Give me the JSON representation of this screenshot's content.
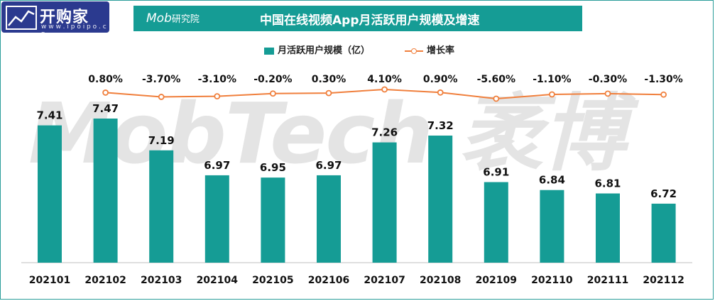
{
  "logo": {
    "text": "开购家",
    "sub": "w w w . i p o i p o . c n"
  },
  "brand": {
    "name": "Mob",
    "suffix": "研究院"
  },
  "watermark": {
    "text": "MobTech 袤博"
  },
  "colors": {
    "bar": "#159c95",
    "line": "#f07f3c",
    "title_bg": "#159c95",
    "logo_bg": "#2b3a8f"
  },
  "chart_data": {
    "type": "bar",
    "title": "中国在线视频App月活跃用户规模及增速",
    "categories": [
      "202101",
      "202102",
      "202103",
      "202104",
      "202105",
      "202106",
      "202107",
      "202108",
      "202109",
      "202110",
      "202111",
      "202112"
    ],
    "series": [
      {
        "name": "月活跃用户规模（亿）",
        "type": "bar",
        "values": [
          7.41,
          7.47,
          7.19,
          6.97,
          6.95,
          6.97,
          7.26,
          7.32,
          6.91,
          6.84,
          6.81,
          6.72
        ],
        "labels": [
          "7.41",
          "7.47",
          "7.19",
          "6.97",
          "6.95",
          "6.97",
          "7.26",
          "7.32",
          "6.91",
          "6.84",
          "6.81",
          "6.72"
        ]
      },
      {
        "name": "增长率",
        "type": "line",
        "values": [
          null,
          0.8,
          -3.7,
          -3.1,
          -0.2,
          0.3,
          4.1,
          0.9,
          -5.6,
          -1.1,
          -0.3,
          -1.3
        ],
        "labels": [
          "",
          "0.80%",
          "-3.70%",
          "-3.10%",
          "-0.20%",
          "0.30%",
          "4.10%",
          "0.90%",
          "-5.60%",
          "-1.10%",
          "-0.30%",
          "-1.30%"
        ]
      }
    ],
    "legend_position": "top-center",
    "grid": false
  }
}
